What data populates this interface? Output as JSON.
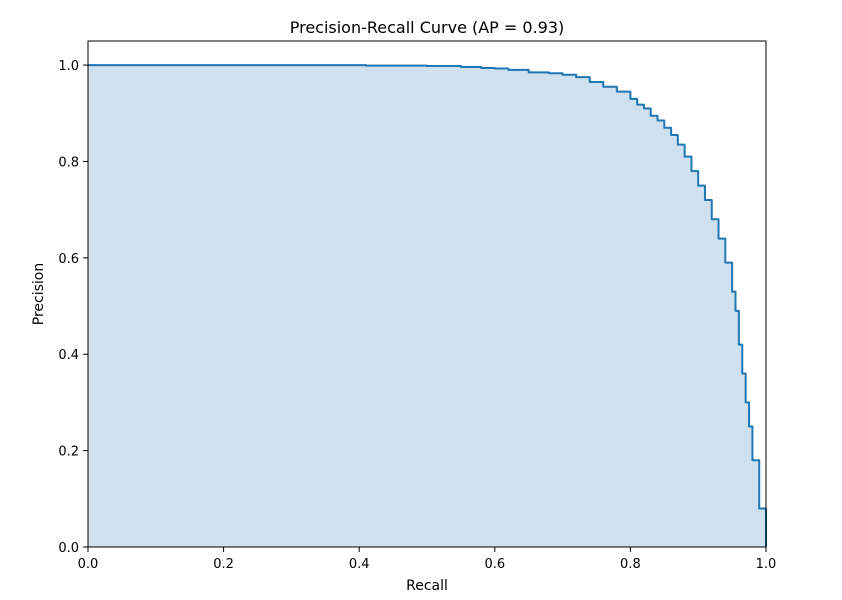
{
  "chart_data": {
    "type": "area",
    "title": "Precision-Recall Curve (AP = 0.93)",
    "xlabel": "Recall",
    "ylabel": "Precision",
    "xlim": [
      0.0,
      1.0
    ],
    "ylim": [
      0.0,
      1.05
    ],
    "xticks": [
      "0.0",
      "0.2",
      "0.4",
      "0.6",
      "0.8",
      "1.0"
    ],
    "yticks": [
      "0.0",
      "0.2",
      "0.4",
      "0.6",
      "0.8",
      "1.0"
    ],
    "grid": false,
    "legend": "none",
    "colors": {
      "line": "#1f77b4",
      "fill": "#cfe0ee",
      "axes": "#000000"
    },
    "series": [
      {
        "x": [
          0.0,
          0.1,
          0.2,
          0.3,
          0.4,
          0.41,
          0.5,
          0.55,
          0.58,
          0.6,
          0.62,
          0.65,
          0.68,
          0.7,
          0.72,
          0.74,
          0.76,
          0.78,
          0.8,
          0.81,
          0.82,
          0.83,
          0.84,
          0.85,
          0.86,
          0.87,
          0.88,
          0.89,
          0.9,
          0.91,
          0.92,
          0.93,
          0.94,
          0.95,
          0.955,
          0.96,
          0.965,
          0.97,
          0.975,
          0.98,
          0.99,
          1.0
        ],
        "y": [
          1.0,
          1.0,
          1.0,
          1.0,
          1.0,
          0.999,
          0.998,
          0.996,
          0.994,
          0.993,
          0.99,
          0.985,
          0.983,
          0.98,
          0.975,
          0.965,
          0.955,
          0.945,
          0.93,
          0.918,
          0.91,
          0.895,
          0.885,
          0.87,
          0.855,
          0.835,
          0.81,
          0.78,
          0.75,
          0.72,
          0.68,
          0.64,
          0.59,
          0.53,
          0.49,
          0.42,
          0.36,
          0.3,
          0.25,
          0.18,
          0.08,
          0.0
        ]
      }
    ]
  }
}
